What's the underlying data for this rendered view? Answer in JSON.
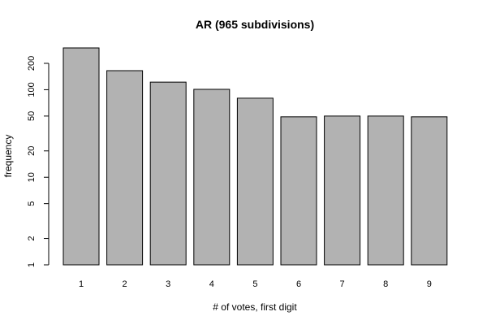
{
  "chart_data": {
    "type": "bar",
    "title": "AR (965 subdivisions)",
    "xlabel": "# of votes, first digit",
    "ylabel": "frequency",
    "y_scale": "log",
    "ylim": [
      1,
      300
    ],
    "y_ticks": [
      1,
      2,
      5,
      10,
      20,
      50,
      100,
      200
    ],
    "categories": [
      "1",
      "2",
      "3",
      "4",
      "5",
      "6",
      "7",
      "8",
      "9"
    ],
    "values": [
      300,
      165,
      122,
      101,
      80,
      49,
      50,
      50,
      49
    ],
    "bar_color": "#b2b2b2",
    "grid": false,
    "legend": "none"
  }
}
